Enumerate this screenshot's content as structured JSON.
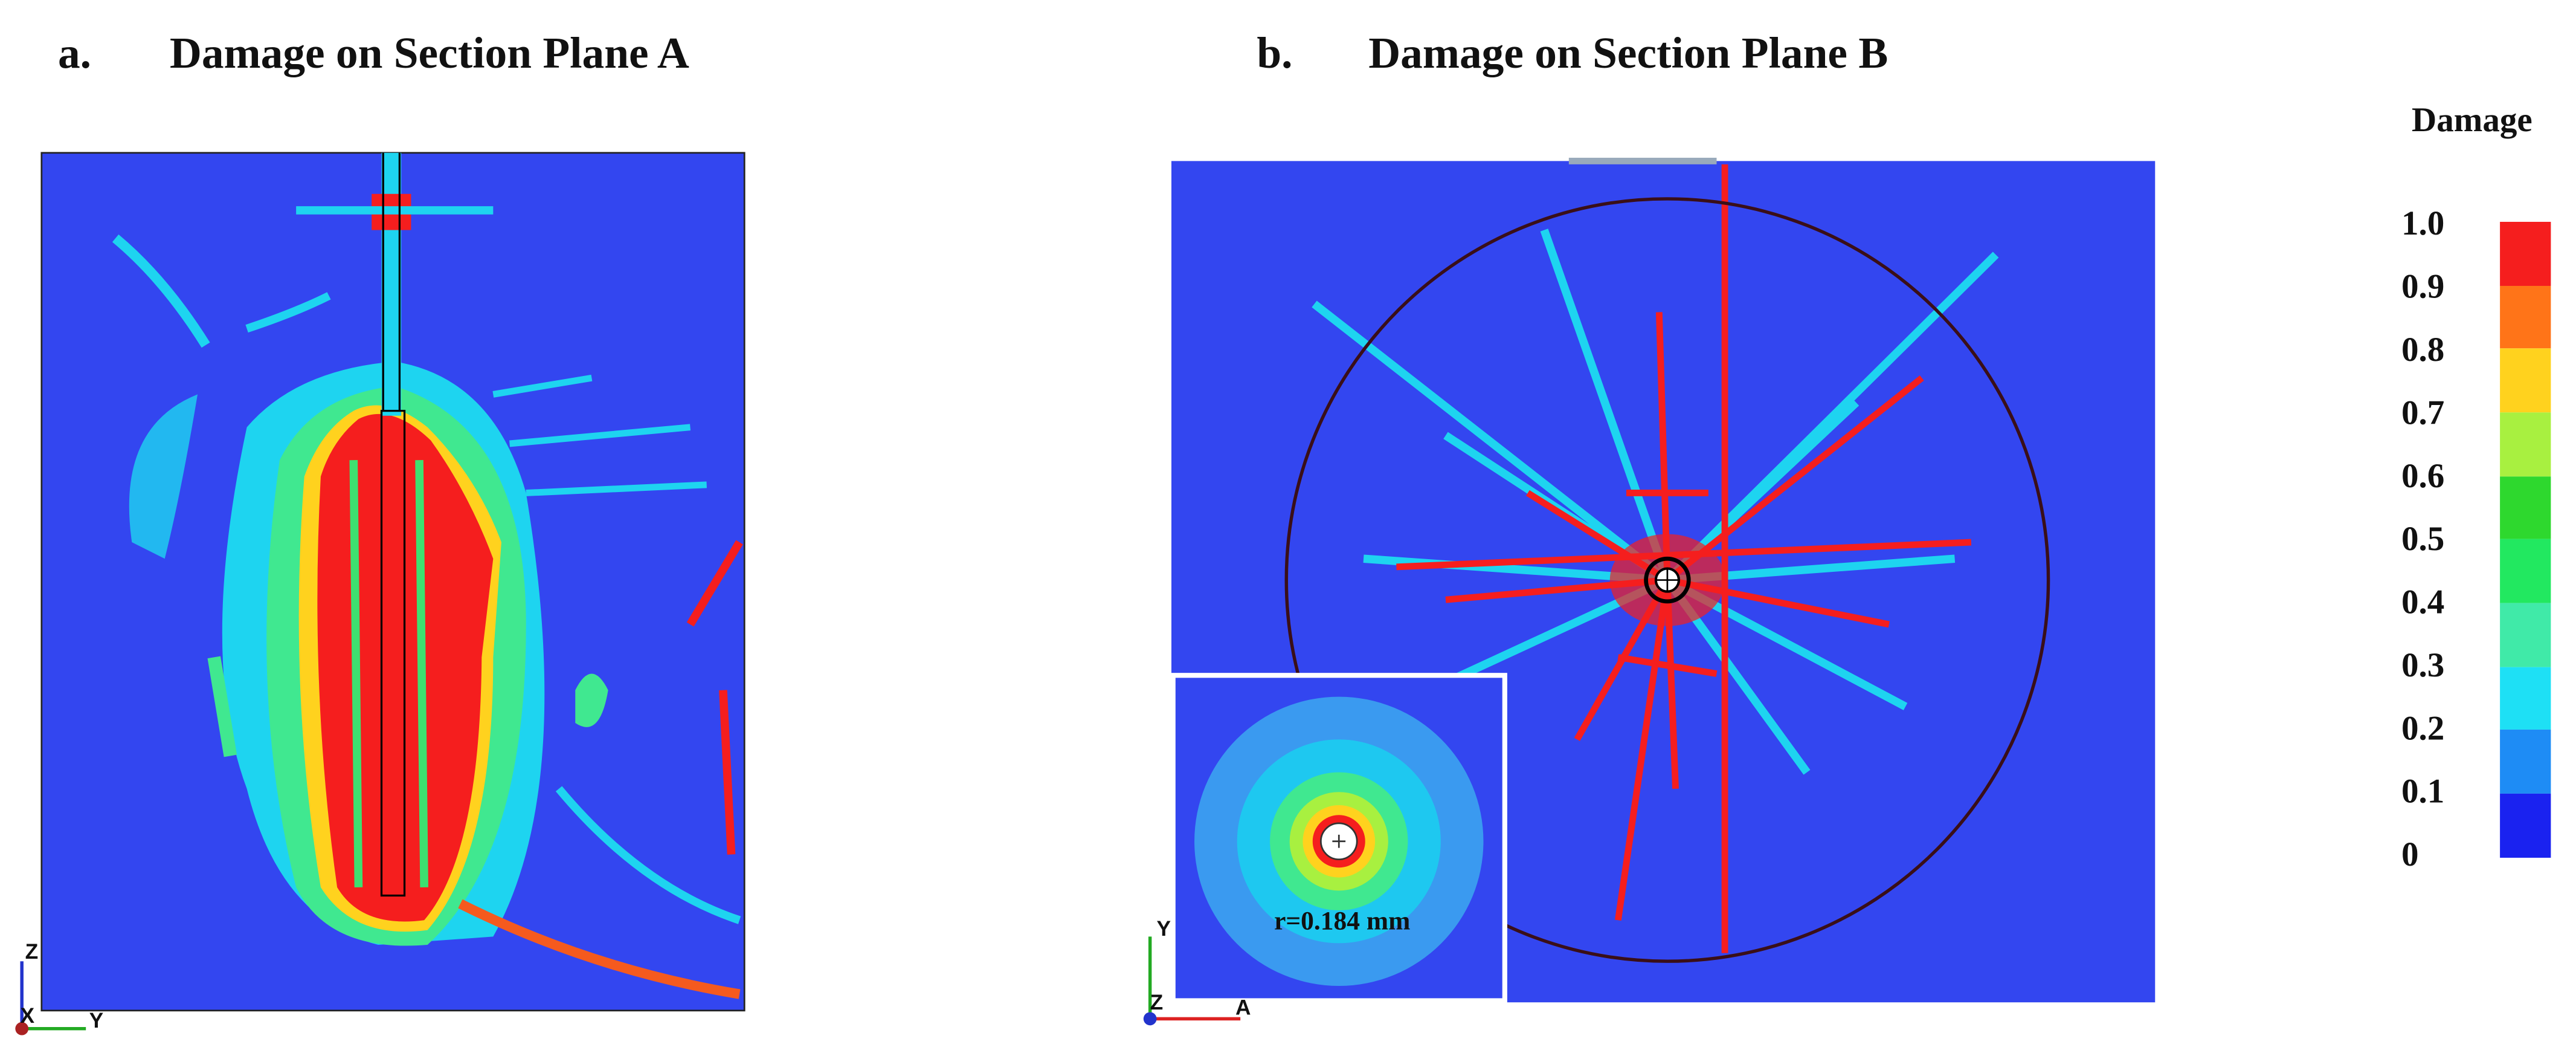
{
  "panel_a": {
    "label": "a.",
    "title": "Damage on Section Plane A",
    "axis_labels": [
      "Z",
      "X",
      "Y"
    ]
  },
  "panel_b": {
    "label": "b.",
    "title": "Damage on Section Plane B",
    "axis_labels": [
      "Y",
      "Z",
      "A"
    ],
    "inset_label": "r=0.184 mm"
  },
  "colorbar": {
    "title": "Damage",
    "ticks": [
      "1.0",
      "0.9",
      "0.8",
      "0.7",
      "0.6",
      "0.5",
      "0.4",
      "0.3",
      "0.2",
      "0.1",
      "0"
    ]
  }
}
